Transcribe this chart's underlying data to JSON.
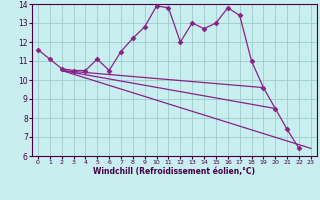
{
  "background_color": "#c8eef0",
  "grid_color": "#a0cccc",
  "line_color": "#882288",
  "xlabel": "Windchill (Refroidissement éolien,°C)",
  "xlim": [
    -0.5,
    23.5
  ],
  "ylim": [
    6,
    14
  ],
  "yticks": [
    6,
    7,
    8,
    9,
    10,
    11,
    12,
    13,
    14
  ],
  "xticks": [
    0,
    1,
    2,
    3,
    4,
    5,
    6,
    7,
    8,
    9,
    10,
    11,
    12,
    13,
    14,
    15,
    16,
    17,
    18,
    19,
    20,
    21,
    22,
    23
  ],
  "series": [
    {
      "x": [
        0,
        1,
        2,
        3,
        4,
        5,
        6,
        7,
        8,
        9,
        10,
        11,
        12,
        13,
        14,
        15,
        16,
        17,
        18,
        19,
        20,
        21,
        22
      ],
      "y": [
        11.6,
        11.1,
        10.6,
        10.5,
        10.5,
        11.1,
        10.5,
        11.5,
        12.2,
        12.8,
        13.9,
        13.8,
        12.0,
        13.0,
        12.7,
        13.0,
        13.8,
        13.4,
        11.0,
        9.6,
        8.5,
        7.4,
        6.4
      ],
      "marker": "D",
      "markersize": 2.5,
      "lw": 0.9
    },
    {
      "x": [
        2,
        19
      ],
      "y": [
        10.5,
        9.6
      ],
      "marker": null,
      "markersize": 0,
      "lw": 0.9
    },
    {
      "x": [
        2,
        20
      ],
      "y": [
        10.5,
        8.5
      ],
      "marker": null,
      "markersize": 0,
      "lw": 0.9
    },
    {
      "x": [
        2,
        23
      ],
      "y": [
        10.5,
        6.4
      ],
      "marker": null,
      "markersize": 0,
      "lw": 0.9
    }
  ]
}
